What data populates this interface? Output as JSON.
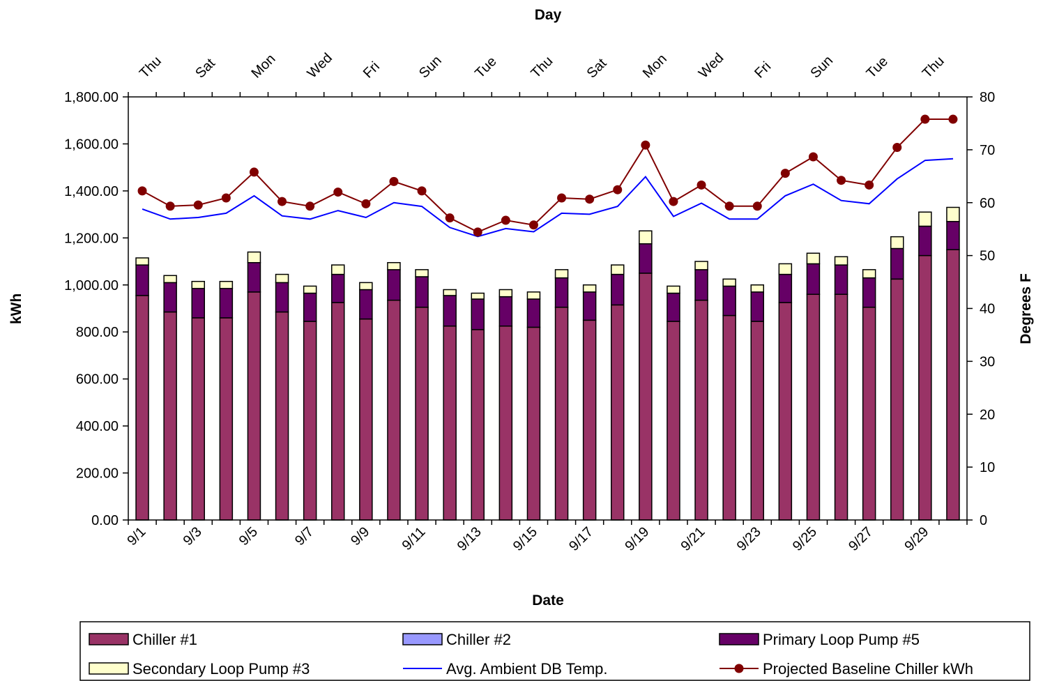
{
  "chart_data": {
    "type": "bar",
    "stacked": true,
    "title": "",
    "xlabel": "Date",
    "x2label": "Day",
    "ylabel": "kWh",
    "y2label": "Degrees F",
    "ylim": [
      0,
      1800
    ],
    "y2lim": [
      0,
      80
    ],
    "yticks": [
      "0.00",
      "200.00",
      "400.00",
      "600.00",
      "800.00",
      "1,000.00",
      "1,200.00",
      "1,400.00",
      "1,600.00",
      "1,800.00"
    ],
    "y2ticks": [
      "0",
      "10",
      "20",
      "30",
      "40",
      "50",
      "60",
      "70",
      "80"
    ],
    "categories": [
      "9/1",
      "9/2",
      "9/3",
      "9/4",
      "9/5",
      "9/6",
      "9/7",
      "9/8",
      "9/9",
      "9/10",
      "9/11",
      "9/12",
      "9/13",
      "9/14",
      "9/15",
      "9/16",
      "9/17",
      "9/18",
      "9/19",
      "9/20",
      "9/21",
      "9/22",
      "9/23",
      "9/24",
      "9/25",
      "9/26",
      "9/27",
      "9/28",
      "9/29",
      "9/30"
    ],
    "date_labels": [
      "9/1",
      "9/3",
      "9/5",
      "9/7",
      "9/9",
      "9/11",
      "9/13",
      "9/15",
      "9/17",
      "9/19",
      "9/21",
      "9/23",
      "9/25",
      "9/27",
      "9/29"
    ],
    "day_labels": [
      "Thu",
      "Sat",
      "Mon",
      "Wed",
      "Fri",
      "Sun",
      "Tue",
      "Thu",
      "Sat",
      "Mon",
      "Wed",
      "Fri",
      "Sun",
      "Tue",
      "Thu"
    ],
    "series": [
      {
        "name": "Chiller #1",
        "type": "bar",
        "axis": "left",
        "color": "#993366",
        "values": [
          955,
          885,
          860,
          860,
          970,
          885,
          845,
          925,
          855,
          935,
          905,
          825,
          810,
          825,
          820,
          905,
          850,
          915,
          1050,
          845,
          935,
          870,
          845,
          925,
          960,
          960,
          905,
          1025,
          1125,
          1150
        ]
      },
      {
        "name": "Chiller #2",
        "type": "bar",
        "axis": "left",
        "color": "#9999ff",
        "values": [
          0,
          0,
          0,
          0,
          0,
          0,
          0,
          0,
          0,
          0,
          0,
          0,
          0,
          0,
          0,
          0,
          0,
          0,
          0,
          0,
          0,
          0,
          0,
          0,
          0,
          0,
          0,
          0,
          0,
          0
        ]
      },
      {
        "name": "Primary Loop Pump #5",
        "type": "bar",
        "axis": "left",
        "color": "#660066",
        "values": [
          130,
          125,
          125,
          125,
          125,
          125,
          120,
          120,
          125,
          130,
          130,
          130,
          130,
          125,
          120,
          125,
          120,
          130,
          125,
          120,
          130,
          125,
          125,
          120,
          130,
          125,
          125,
          130,
          125,
          120
        ]
      },
      {
        "name": "Secondary Loop Pump #3",
        "type": "bar",
        "axis": "left",
        "color": "#ffffcc",
        "values": [
          30,
          30,
          30,
          30,
          45,
          35,
          30,
          40,
          30,
          30,
          30,
          25,
          25,
          30,
          30,
          35,
          30,
          40,
          55,
          30,
          35,
          30,
          30,
          45,
          45,
          35,
          35,
          50,
          60,
          60
        ]
      },
      {
        "name": "Avg. Ambient DB Temp.",
        "type": "line",
        "axis": "right",
        "color": "#0000ff",
        "values": [
          58.8,
          56.9,
          57.2,
          58,
          61.3,
          57.5,
          56.9,
          58.5,
          57.2,
          60,
          59.3,
          55.3,
          53.6,
          55.1,
          54.5,
          58,
          57.8,
          59.3,
          64.9,
          57.4,
          59.9,
          56.9,
          56.9,
          61.3,
          63.5,
          60.4,
          59.8,
          64.5,
          68,
          68.3
        ]
      },
      {
        "name": "Projected Baseline Chiller kWh",
        "type": "line",
        "axis": "left",
        "color": "#800000",
        "marker": "circle",
        "values": [
          1400,
          1335,
          1340,
          1370,
          1480,
          1355,
          1335,
          1395,
          1345,
          1440,
          1400,
          1285,
          1225,
          1275,
          1255,
          1370,
          1365,
          1405,
          1595,
          1355,
          1425,
          1335,
          1335,
          1475,
          1545,
          1445,
          1425,
          1585,
          1705,
          1705
        ]
      }
    ],
    "legend": {
      "placement": "bottom",
      "entries": [
        "Chiller #1",
        "Chiller #2",
        "Primary Loop Pump #5",
        "Secondary Loop Pump #3",
        "Avg. Ambient DB Temp.",
        "Projected Baseline Chiller kWh"
      ]
    },
    "grid": false
  }
}
